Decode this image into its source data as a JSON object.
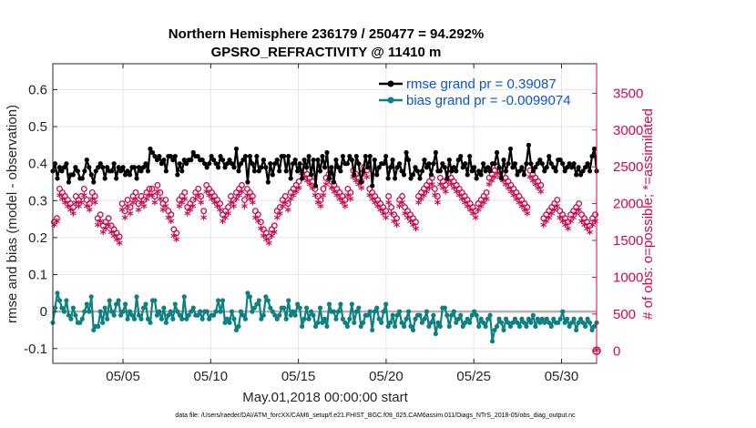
{
  "chart_data": {
    "type": "line",
    "title_line1": "Northern Hemisphere 236179 / 250477 = 94.292%",
    "title_line2": "GPSRO_REFRACTIVITY @ 11410 m",
    "xlabel": "May.01,2018 00:00:00 start",
    "ylabel": "rmse and bias (model - observation)",
    "ylabel_right": "# of obs: o=possible; *=assimilated",
    "footer": "data file: /Users/raeder/DAI/ATM_forcXX/CAM6_setup/f.e21.FHIST_BGC.f09_025.CAM6assim.011/Diags_NTrS_2018-05/obs_diag_output.nc",
    "xlim": [
      1.0,
      32.0
    ],
    "ylim": [
      -0.14,
      0.67
    ],
    "ylim_right": [
      -170,
      3900
    ],
    "x_ticks": [
      5,
      10,
      15,
      20,
      25,
      30
    ],
    "x_tick_labels": [
      "05/05",
      "05/10",
      "05/15",
      "05/20",
      "05/25",
      "05/30"
    ],
    "y_ticks": [
      -0.1,
      0,
      0.1,
      0.2,
      0.3,
      0.4,
      0.5,
      0.6
    ],
    "y_tick_labels": [
      "-0.1",
      "0",
      "0.1",
      "0.2",
      "0.3",
      "0.4",
      "0.5",
      "0.6"
    ],
    "y_ticks_right": [
      0,
      500,
      1000,
      1500,
      2000,
      2500,
      3000,
      3500
    ],
    "y_tick_labels_right": [
      "0",
      "500",
      "1000",
      "1500",
      "2000",
      "2500",
      "3000",
      "3500"
    ],
    "grid": true,
    "legend_position": "top-right",
    "colors": {
      "rmse": "#000000",
      "bias": "#0f8080",
      "obs": "#cc0a4f",
      "zero_line": "#b3b3b3",
      "legend_text": "#0a52d6"
    },
    "series": [
      {
        "name": "rmse grand pr = 0.39087",
        "values": [
          0.38,
          0.4,
          0.36,
          0.39,
          0.38,
          0.39,
          0.4,
          0.35,
          0.37,
          0.37,
          0.39,
          0.38,
          0.36,
          0.36,
          0.38,
          0.41,
          0.39,
          0.37,
          0.35,
          0.38,
          0.39,
          0.4,
          0.39,
          0.36,
          0.39,
          0.38,
          0.38,
          0.4,
          0.36,
          0.39,
          0.38,
          0.39,
          0.37,
          0.38,
          0.37,
          0.39,
          0.39,
          0.36,
          0.39,
          0.38,
          0.39,
          0.4,
          0.38,
          0.44,
          0.43,
          0.42,
          0.41,
          0.42,
          0.4,
          0.41,
          0.38,
          0.42,
          0.42,
          0.41,
          0.42,
          0.37,
          0.4,
          0.38,
          0.41,
          0.4,
          0.41,
          0.41,
          0.43,
          0.42,
          0.42,
          0.41,
          0.41,
          0.4,
          0.39,
          0.4,
          0.42,
          0.41,
          0.4,
          0.39,
          0.42,
          0.41,
          0.39,
          0.4,
          0.41,
          0.4,
          0.39,
          0.44,
          0.38,
          0.4,
          0.41,
          0.42,
          0.35,
          0.42,
          0.4,
          0.38,
          0.42,
          0.38,
          0.39,
          0.41,
          0.39,
          0.35,
          0.4,
          0.37,
          0.4,
          0.41,
          0.38,
          0.42,
          0.42,
          0.38,
          0.42,
          0.36,
          0.4,
          0.41,
          0.38,
          0.4,
          0.36,
          0.41,
          0.39,
          0.42,
          0.37,
          0.41,
          0.34,
          0.41,
          0.38,
          0.42,
          0.39,
          0.43,
          0.36,
          0.39,
          0.35,
          0.41,
          0.39,
          0.38,
          0.42,
          0.4,
          0.4,
          0.42,
          0.41,
          0.37,
          0.42,
          0.4,
          0.35,
          0.38,
          0.42,
          0.39,
          0.42,
          0.34,
          0.41,
          0.37,
          0.39,
          0.4,
          0.4,
          0.42,
          0.36,
          0.39,
          0.41,
          0.36,
          0.39,
          0.4,
          0.38,
          0.37,
          0.43,
          0.41,
          0.36,
          0.37,
          0.39,
          0.38,
          0.36,
          0.38,
          0.41,
          0.39,
          0.4,
          0.37,
          0.4,
          0.43,
          0.38,
          0.38,
          0.4,
          0.39,
          0.36,
          0.41,
          0.38,
          0.39,
          0.38,
          0.41,
          0.42,
          0.39,
          0.4,
          0.37,
          0.42,
          0.38,
          0.39,
          0.36,
          0.38,
          0.37,
          0.4,
          0.38,
          0.39,
          0.38,
          0.4,
          0.4,
          0.43,
          0.39,
          0.36,
          0.41,
          0.38,
          0.4,
          0.44,
          0.39,
          0.4,
          0.37,
          0.38,
          0.39,
          0.37,
          0.4,
          0.45,
          0.4,
          0.38,
          0.39,
          0.4,
          0.41,
          0.4,
          0.38,
          0.39,
          0.42,
          0.4,
          0.39,
          0.38,
          0.41,
          0.41,
          0.4,
          0.38,
          0.39,
          0.4,
          0.39,
          0.4,
          0.37,
          0.39,
          0.37,
          0.38,
          0.39,
          0.4,
          0.38,
          0.42,
          0.44,
          0.38
        ]
      },
      {
        "name": "bias grand pr = -0.0099074",
        "values": [
          -0.03,
          0.01,
          0.05,
          0.03,
          0.01,
          0.0,
          0.03,
          -0.01,
          -0.02,
          0.01,
          -0.01,
          -0.03,
          -0.03,
          -0.02,
          0.0,
          0.02,
          0.0,
          0.04,
          -0.05,
          -0.04,
          -0.04,
          0.0,
          -0.03,
          0.01,
          -0.02,
          0.03,
          0.0,
          -0.01,
          0.02,
          0.03,
          -0.01,
          0.0,
          0.02,
          -0.02,
          0.0,
          -0.01,
          -0.02,
          0.04,
          -0.01,
          -0.02,
          0.01,
          0.02,
          -0.02,
          -0.03,
          0.03,
          0.03,
          -0.01,
          0.0,
          -0.02,
          0.01,
          -0.03,
          -0.01,
          0.0,
          -0.02,
          0.02,
          0.0,
          -0.01,
          -0.02,
          0.04,
          -0.02,
          -0.01,
          0.0,
          0.01,
          -0.01,
          -0.01,
          0.0,
          -0.02,
          0.0,
          0.0,
          -0.02,
          -0.01,
          -0.01,
          0.0,
          0.03,
          0.0,
          0.03,
          -0.03,
          -0.02,
          -0.03,
          0.0,
          -0.02,
          -0.05,
          -0.04,
          0.0,
          -0.01,
          -0.02,
          0.05,
          0.04,
          0.0,
          0.01,
          0.02,
          0.03,
          -0.02,
          -0.01,
          0.04,
          0.03,
          0.01,
          0.0,
          -0.01,
          -0.02,
          -0.01,
          0.01,
          0.01,
          -0.02,
          0.03,
          -0.01,
          0.0,
          -0.01,
          0.02,
          0.01,
          -0.04,
          -0.02,
          0.01,
          -0.02,
          0.0,
          -0.01,
          -0.04,
          -0.03,
          0.01,
          -0.03,
          -0.02,
          -0.04,
          0.02,
          0.0,
          0.0,
          -0.02,
          0.0,
          0.02,
          -0.02,
          -0.03,
          -0.04,
          -0.02,
          0.02,
          -0.03,
          0.0,
          0.01,
          -0.04,
          -0.03,
          -0.01,
          -0.01,
          0.0,
          -0.05,
          0.0,
          0.01,
          -0.02,
          -0.03,
          0.0,
          0.02,
          -0.04,
          -0.03,
          -0.01,
          -0.04,
          -0.01,
          0.0,
          -0.03,
          -0.04,
          -0.02,
          0.0,
          -0.04,
          -0.05,
          -0.02,
          -0.01,
          -0.01,
          -0.03,
          -0.02,
          0.0,
          -0.04,
          -0.03,
          -0.01,
          -0.06,
          -0.03,
          -0.04,
          0.01,
          0.01,
          -0.01,
          -0.04,
          -0.01,
          0.0,
          -0.03,
          -0.02,
          -0.01,
          -0.04,
          -0.03,
          -0.02,
          -0.03,
          -0.01,
          0.0,
          -0.01,
          -0.04,
          -0.02,
          -0.03,
          -0.04,
          -0.02,
          -0.01,
          -0.08,
          -0.05,
          -0.04,
          -0.02,
          -0.03,
          -0.05,
          -0.02,
          -0.03,
          -0.04,
          -0.03,
          -0.02,
          -0.03,
          -0.04,
          -0.02,
          -0.03,
          -0.04,
          -0.02,
          -0.03,
          -0.01,
          -0.04,
          -0.02,
          -0.03,
          -0.02,
          -0.03,
          -0.02,
          -0.03,
          -0.04,
          -0.02,
          -0.03,
          -0.03,
          -0.02,
          0.0,
          -0.03,
          -0.02,
          -0.04,
          -0.03,
          -0.02,
          -0.05,
          -0.03,
          -0.02,
          -0.03,
          -0.04,
          -0.02,
          -0.03,
          -0.05,
          -0.04,
          -0.03
        ]
      }
    ],
    "obs_possible": [
      1750,
      1800,
      2200,
      2150,
      2100,
      2050,
      2000,
      1950,
      2100,
      2050,
      2100,
      2200,
      2050,
      2000,
      2150,
      2100,
      1800,
      1850,
      1700,
      1750,
      1800,
      1700,
      1650,
      1600,
      1550,
      2000,
      1900,
      2050,
      1950,
      2100,
      2150,
      2000,
      2100,
      2050,
      2150,
      2200,
      2200,
      2100,
      2250,
      2150,
      2000,
      2050,
      1900,
      1850,
      1650,
      1600,
      2050,
      2100,
      2150,
      1950,
      2000,
      2050,
      2150,
      2200,
      2100,
      1900,
      2250,
      2200,
      2150,
      2100,
      2050,
      2000,
      1850,
      1900,
      1950,
      2100,
      2050,
      2150,
      2200,
      2250,
      2050,
      2200,
      2150,
      2100,
      1900,
      1850,
      1750,
      1650,
      1600,
      1550,
      1650,
      1700,
      1900,
      1950,
      2050,
      2100,
      2000,
      2150,
      2200,
      2250,
      2300,
      2500,
      2450,
      2400,
      2350,
      2300,
      2200,
      2100,
      2050,
      2200,
      2350,
      2400,
      2300,
      2250,
      2200,
      2150,
      2100,
      2050,
      2200,
      2150,
      2450,
      2400,
      2350,
      2300,
      2500,
      2450,
      2200,
      2150,
      2100,
      2050,
      2000,
      1950,
      1900,
      2100,
      1950,
      1850,
      1800,
      2050,
      2100,
      1950,
      1900,
      1850,
      1800,
      1750,
      2100,
      2150,
      2200,
      2250,
      2300,
      2350,
      2200,
      2100,
      2350,
      2300,
      2250,
      2400,
      2350,
      2300,
      2250,
      2200,
      2150,
      2100,
      2050,
      2000,
      1950,
      1900,
      2000,
      2050,
      2100,
      2150,
      2350,
      2400,
      2450,
      2500,
      2450,
      2400,
      2350,
      2300,
      2250,
      2200,
      2150,
      2100,
      2050,
      2000,
      1950,
      2450,
      2400,
      2350,
      2300,
      2250,
      1800,
      1850,
      1900,
      1950,
      2000,
      2050,
      1900,
      1850,
      1800,
      1750,
      1850,
      1900,
      1950,
      2000,
      1850,
      1800,
      1750,
      1700,
      1800,
      1850
    ],
    "obs_assimilated": [
      1700,
      1750,
      2100,
      2050,
      2000,
      1950,
      1900,
      1850,
      2000,
      1950,
      2000,
      2100,
      1950,
      1900,
      2050,
      2000,
      1700,
      1750,
      1600,
      1650,
      1700,
      1600,
      1550,
      1500,
      1450,
      1900,
      1800,
      1950,
      1850,
      2000,
      2050,
      1900,
      2000,
      1950,
      2050,
      2100,
      2100,
      2000,
      2150,
      2050,
      1900,
      1950,
      1800,
      1750,
      1550,
      1500,
      1950,
      2000,
      2050,
      1850,
      1900,
      1950,
      2050,
      2100,
      2000,
      1800,
      2150,
      2100,
      2050,
      2000,
      1950,
      1900,
      1750,
      1800,
      1850,
      2000,
      1950,
      2050,
      2100,
      2150,
      1950,
      2100,
      2050,
      2000,
      1800,
      1750,
      1650,
      1550,
      1500,
      1450,
      1550,
      1600,
      1800,
      1850,
      1950,
      2000,
      1900,
      2050,
      2100,
      2150,
      2200,
      2400,
      2350,
      2300,
      2250,
      2200,
      2100,
      2000,
      1950,
      2100,
      2250,
      2300,
      2200,
      2150,
      2100,
      2050,
      2000,
      1950,
      2100,
      2050,
      2350,
      2300,
      2250,
      2200,
      2400,
      2350,
      2100,
      2050,
      2000,
      1950,
      1900,
      1850,
      1800,
      2000,
      1850,
      1750,
      1700,
      1950,
      2000,
      1850,
      1800,
      1750,
      1700,
      1650,
      2000,
      2050,
      2100,
      2150,
      2200,
      2250,
      2100,
      2000,
      2250,
      2200,
      2150,
      2300,
      2250,
      2200,
      2150,
      2100,
      2050,
      2000,
      1950,
      1900,
      1850,
      1800,
      1900,
      1950,
      2000,
      2050,
      2250,
      2300,
      2350,
      2400,
      2350,
      2300,
      2250,
      2200,
      2150,
      2100,
      2050,
      2000,
      1950,
      1900,
      1850,
      2350,
      2300,
      2250,
      2200,
      2150,
      1700,
      1750,
      1800,
      1850,
      1900,
      1950,
      1800,
      1750,
      1700,
      1650,
      1750,
      1800,
      1850,
      1900,
      1750,
      1700,
      1650,
      1600,
      1700,
      1750
    ]
  }
}
